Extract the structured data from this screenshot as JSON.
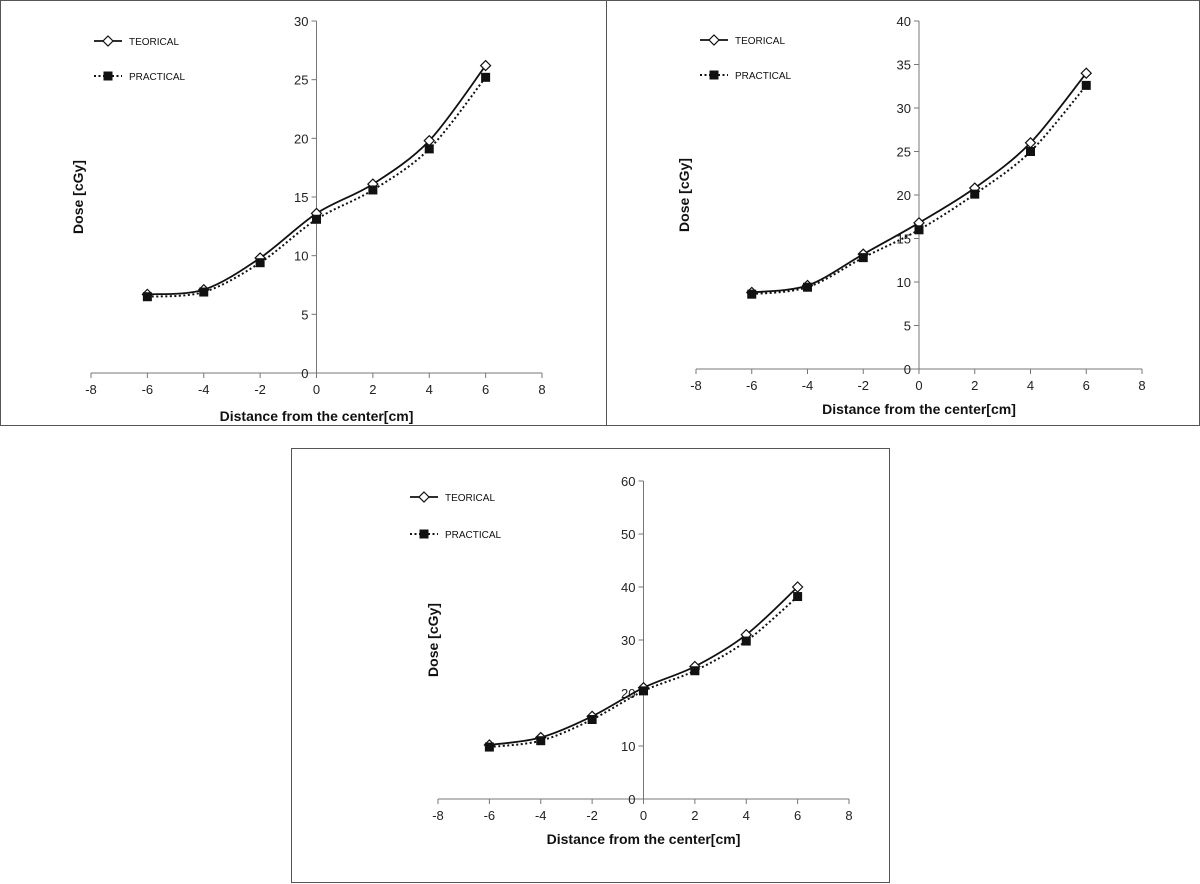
{
  "chart_data": [
    {
      "type": "line",
      "xlabel": "Distance from the center[cm]",
      "ylabel": "Dose [cGy]",
      "xlim": [
        -8,
        8
      ],
      "ylim": [
        0,
        30
      ],
      "xticks": [
        -8,
        -6,
        -4,
        -2,
        0,
        2,
        4,
        6,
        8
      ],
      "yticks": [
        0,
        5,
        10,
        15,
        20,
        25,
        30
      ],
      "legend_position": "top-left",
      "x": [
        -6,
        -4,
        -2,
        0,
        2,
        4,
        6
      ],
      "series": [
        {
          "name": "TEORICAL",
          "marker": "open-diamond",
          "line": "solid",
          "values": [
            6.7,
            7.1,
            9.8,
            13.6,
            16.1,
            19.8,
            26.2
          ]
        },
        {
          "name": "PRACTICAL",
          "marker": "filled-square",
          "line": "dotted",
          "values": [
            6.5,
            6.9,
            9.4,
            13.1,
            15.6,
            19.1,
            25.2
          ]
        }
      ]
    },
    {
      "type": "line",
      "xlabel": "Distance from the center[cm]",
      "ylabel": "Dose [cGy]",
      "xlim": [
        -8,
        8
      ],
      "ylim": [
        0,
        40
      ],
      "xticks": [
        -8,
        -6,
        -4,
        -2,
        0,
        2,
        4,
        6,
        8
      ],
      "yticks": [
        0,
        5,
        10,
        15,
        20,
        25,
        30,
        35,
        40
      ],
      "legend_position": "top-left",
      "x": [
        -6,
        -4,
        -2,
        0,
        2,
        4,
        6
      ],
      "series": [
        {
          "name": "TEORICAL",
          "marker": "open-diamond",
          "line": "solid",
          "values": [
            8.8,
            9.6,
            13.2,
            16.8,
            20.8,
            26.0,
            34.0
          ]
        },
        {
          "name": "PRACTICAL",
          "marker": "filled-square",
          "line": "dotted",
          "values": [
            8.6,
            9.4,
            12.8,
            16.0,
            20.1,
            25.0,
            32.6
          ]
        }
      ]
    },
    {
      "type": "line",
      "xlabel": "Distance from the center[cm]",
      "ylabel": "Dose [cGy]",
      "xlim": [
        -8,
        8
      ],
      "ylim": [
        0,
        60
      ],
      "xticks": [
        -8,
        -6,
        -4,
        -2,
        0,
        2,
        4,
        6,
        8
      ],
      "yticks": [
        0,
        10,
        20,
        30,
        40,
        50,
        60
      ],
      "legend_position": "top-left",
      "x": [
        -6,
        -4,
        -2,
        0,
        2,
        4,
        6
      ],
      "series": [
        {
          "name": "TEORICAL",
          "marker": "open-diamond",
          "line": "solid",
          "values": [
            10.2,
            11.6,
            15.6,
            21.0,
            25.0,
            31.0,
            40.0
          ]
        },
        {
          "name": "PRACTICAL",
          "marker": "filled-square",
          "line": "dotted",
          "values": [
            9.8,
            11.0,
            15.0,
            20.4,
            24.2,
            29.8,
            38.2
          ]
        }
      ]
    }
  ]
}
